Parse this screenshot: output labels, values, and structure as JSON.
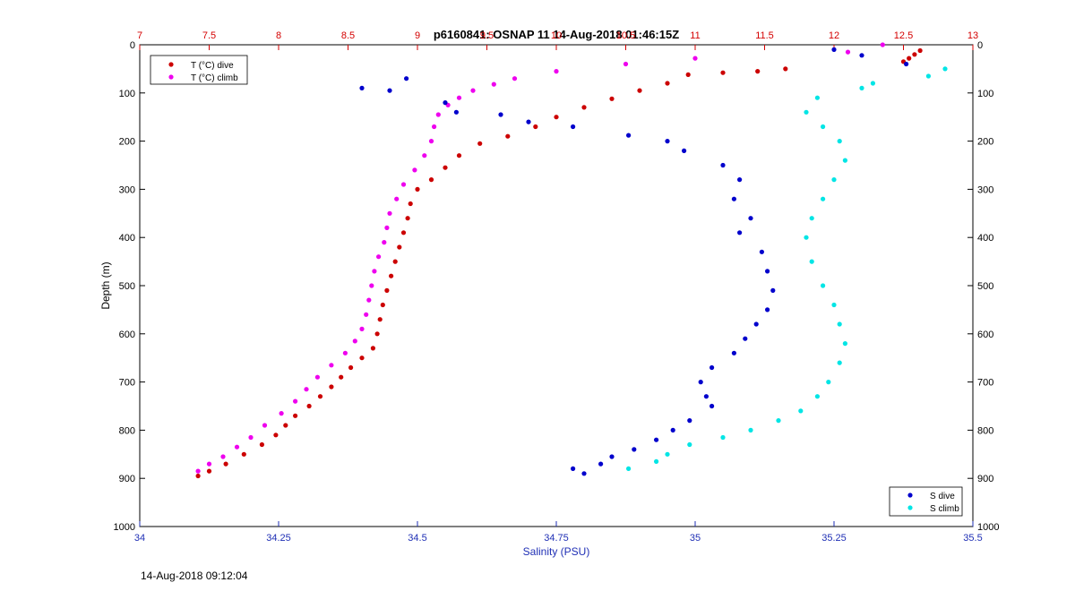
{
  "chart_data": {
    "type": "scatter",
    "title": "p6160841: OSNAP 11 14-Aug-2018 01:46:15Z",
    "ylabel": "Depth (m)",
    "xlabel_bottom": "Salinity (PSU)",
    "xlabel_top": "",
    "ylim": [
      0,
      1000
    ],
    "y_reversed": true,
    "x_bottom_lim": [
      34,
      35.5
    ],
    "x_top_lim": [
      7,
      13
    ],
    "y_ticks": [
      0,
      100,
      200,
      300,
      400,
      500,
      600,
      700,
      800,
      900,
      1000
    ],
    "x_bottom_ticks": [
      "34",
      "34.25",
      "34.5",
      "34.75",
      "35",
      "35.25",
      "35.5"
    ],
    "x_top_ticks": [
      "7",
      "7.5",
      "8",
      "8.5",
      "9",
      "9.5",
      "10",
      "10.5",
      "11",
      "11.5",
      "12",
      "12.5",
      "13"
    ],
    "colors": {
      "temp_axis": "#d40000",
      "sal_axis": "#1f2fb5"
    },
    "legend_top_left": [
      {
        "label": "T (°C) dive",
        "color": "#cc0000"
      },
      {
        "label": "T (°C) climb",
        "color": "#ee00ee"
      }
    ],
    "legend_bottom_right": [
      {
        "label": "S dive",
        "color": "#0000cc"
      },
      {
        "label": "S climb",
        "color": "#00e5e5"
      }
    ],
    "series": [
      {
        "name": "T (°C) dive",
        "axis": "top",
        "color": "#cc0000",
        "points": [
          [
            12.62,
            12
          ],
          [
            12.58,
            20
          ],
          [
            12.54,
            28
          ],
          [
            12.5,
            35
          ],
          [
            11.65,
            50
          ],
          [
            11.45,
            55
          ],
          [
            11.2,
            58
          ],
          [
            10.95,
            62
          ],
          [
            10.8,
            80
          ],
          [
            10.6,
            95
          ],
          [
            10.4,
            112
          ],
          [
            10.2,
            130
          ],
          [
            10.0,
            150
          ],
          [
            9.85,
            170
          ],
          [
            9.65,
            190
          ],
          [
            9.45,
            205
          ],
          [
            9.3,
            230
          ],
          [
            9.2,
            255
          ],
          [
            9.1,
            280
          ],
          [
            9.0,
            300
          ],
          [
            8.95,
            330
          ],
          [
            8.93,
            360
          ],
          [
            8.9,
            390
          ],
          [
            8.87,
            420
          ],
          [
            8.84,
            450
          ],
          [
            8.81,
            480
          ],
          [
            8.78,
            510
          ],
          [
            8.75,
            540
          ],
          [
            8.73,
            570
          ],
          [
            8.71,
            600
          ],
          [
            8.68,
            630
          ],
          [
            8.6,
            650
          ],
          [
            8.52,
            670
          ],
          [
            8.45,
            690
          ],
          [
            8.38,
            710
          ],
          [
            8.3,
            730
          ],
          [
            8.22,
            750
          ],
          [
            8.12,
            770
          ],
          [
            8.05,
            790
          ],
          [
            7.98,
            810
          ],
          [
            7.88,
            830
          ],
          [
            7.75,
            850
          ],
          [
            7.62,
            870
          ],
          [
            7.5,
            885
          ],
          [
            7.42,
            895
          ]
        ]
      },
      {
        "name": "T (°C) climb",
        "axis": "top",
        "color": "#ee00ee",
        "points": [
          [
            12.35,
            0
          ],
          [
            12.1,
            15
          ],
          [
            11.0,
            28
          ],
          [
            10.5,
            40
          ],
          [
            10.0,
            55
          ],
          [
            9.7,
            70
          ],
          [
            9.55,
            82
          ],
          [
            9.4,
            95
          ],
          [
            9.3,
            110
          ],
          [
            9.22,
            125
          ],
          [
            9.15,
            145
          ],
          [
            9.12,
            170
          ],
          [
            9.1,
            200
          ],
          [
            9.05,
            230
          ],
          [
            8.98,
            260
          ],
          [
            8.9,
            290
          ],
          [
            8.85,
            320
          ],
          [
            8.8,
            350
          ],
          [
            8.78,
            380
          ],
          [
            8.76,
            410
          ],
          [
            8.72,
            440
          ],
          [
            8.69,
            470
          ],
          [
            8.67,
            500
          ],
          [
            8.65,
            530
          ],
          [
            8.63,
            560
          ],
          [
            8.6,
            590
          ],
          [
            8.55,
            615
          ],
          [
            8.48,
            640
          ],
          [
            8.38,
            665
          ],
          [
            8.28,
            690
          ],
          [
            8.2,
            715
          ],
          [
            8.12,
            740
          ],
          [
            8.02,
            765
          ],
          [
            7.9,
            790
          ],
          [
            7.8,
            815
          ],
          [
            7.7,
            835
          ],
          [
            7.6,
            855
          ],
          [
            7.5,
            870
          ],
          [
            7.42,
            885
          ]
        ]
      },
      {
        "name": "S dive",
        "axis": "bottom",
        "color": "#0000cc",
        "points": [
          [
            35.25,
            10
          ],
          [
            35.3,
            22
          ],
          [
            35.38,
            40
          ],
          [
            34.45,
            95
          ],
          [
            34.4,
            90
          ],
          [
            34.48,
            70
          ],
          [
            34.55,
            120
          ],
          [
            34.57,
            140
          ],
          [
            34.65,
            145
          ],
          [
            34.7,
            160
          ],
          [
            34.78,
            170
          ],
          [
            34.88,
            188
          ],
          [
            34.95,
            200
          ],
          [
            34.98,
            220
          ],
          [
            35.05,
            250
          ],
          [
            35.08,
            280
          ],
          [
            35.07,
            320
          ],
          [
            35.1,
            360
          ],
          [
            35.08,
            390
          ],
          [
            35.12,
            430
          ],
          [
            35.13,
            470
          ],
          [
            35.14,
            510
          ],
          [
            35.13,
            550
          ],
          [
            35.11,
            580
          ],
          [
            35.09,
            610
          ],
          [
            35.07,
            640
          ],
          [
            35.03,
            670
          ],
          [
            35.01,
            700
          ],
          [
            35.02,
            730
          ],
          [
            35.03,
            750
          ],
          [
            34.99,
            780
          ],
          [
            34.96,
            800
          ],
          [
            34.93,
            820
          ],
          [
            34.89,
            840
          ],
          [
            34.85,
            855
          ],
          [
            34.83,
            870
          ],
          [
            34.78,
            880
          ],
          [
            34.8,
            890
          ]
        ]
      },
      {
        "name": "S climb",
        "axis": "bottom",
        "color": "#00e5e5",
        "points": [
          [
            35.45,
            50
          ],
          [
            35.42,
            65
          ],
          [
            35.32,
            80
          ],
          [
            35.3,
            90
          ],
          [
            35.22,
            110
          ],
          [
            35.2,
            140
          ],
          [
            35.23,
            170
          ],
          [
            35.26,
            200
          ],
          [
            35.27,
            240
          ],
          [
            35.25,
            280
          ],
          [
            35.23,
            320
          ],
          [
            35.21,
            360
          ],
          [
            35.2,
            400
          ],
          [
            35.21,
            450
          ],
          [
            35.23,
            500
          ],
          [
            35.25,
            540
          ],
          [
            35.26,
            580
          ],
          [
            35.27,
            620
          ],
          [
            35.26,
            660
          ],
          [
            35.24,
            700
          ],
          [
            35.22,
            730
          ],
          [
            35.19,
            760
          ],
          [
            35.15,
            780
          ],
          [
            35.1,
            800
          ],
          [
            35.05,
            815
          ],
          [
            34.99,
            830
          ],
          [
            34.95,
            850
          ],
          [
            34.93,
            865
          ],
          [
            34.88,
            880
          ]
        ]
      }
    ]
  },
  "footer": {
    "timestamp": "14-Aug-2018 09:12:04"
  }
}
